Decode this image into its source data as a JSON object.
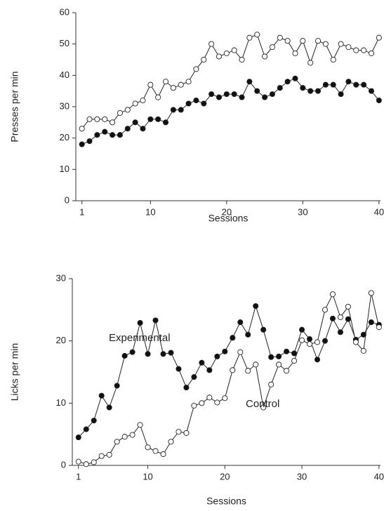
{
  "chart_data": [
    {
      "type": "line",
      "ylabel": "Presses per min",
      "xlabel": "Sessions",
      "x": [
        1,
        2,
        3,
        4,
        5,
        6,
        7,
        8,
        9,
        10,
        11,
        12,
        13,
        14,
        15,
        16,
        17,
        18,
        19,
        20,
        21,
        22,
        23,
        24,
        25,
        26,
        27,
        28,
        29,
        30,
        31,
        32,
        33,
        34,
        35,
        36,
        37,
        38,
        39,
        40
      ],
      "xlim": [
        0.2,
        40.2
      ],
      "xticks": [
        1,
        10,
        20,
        30,
        40
      ],
      "ylim": [
        0,
        60
      ],
      "yticks": [
        0,
        10,
        20,
        30,
        40,
        50,
        60
      ],
      "series": [
        {
          "color": "#222",
          "marker_fill": "#fff",
          "values": [
            23,
            26,
            26,
            26,
            25,
            28,
            29,
            31,
            32,
            37,
            33,
            38,
            36,
            37,
            38,
            42,
            45,
            50,
            46,
            47,
            48,
            45,
            52,
            53,
            46,
            49,
            52,
            51,
            47,
            51,
            44,
            51,
            50,
            45,
            50,
            49,
            48,
            48,
            47,
            52
          ]
        },
        {
          "color": "#222",
          "marker_fill": "#111",
          "values": [
            18,
            19,
            21,
            22,
            21,
            21,
            23,
            25,
            23,
            26,
            26,
            25,
            29,
            29,
            31,
            32,
            31,
            34,
            33,
            34,
            34,
            33,
            38,
            35,
            33,
            34,
            36,
            38,
            39,
            36,
            35,
            35,
            37,
            37,
            34,
            38,
            37,
            37,
            35,
            32
          ]
        }
      ]
    },
    {
      "type": "line",
      "ylabel": "Licks per min",
      "xlabel": "Sessions",
      "x": [
        1,
        2,
        3,
        4,
        5,
        6,
        7,
        8,
        9,
        10,
        11,
        12,
        13,
        14,
        15,
        16,
        17,
        18,
        19,
        20,
        21,
        22,
        23,
        24,
        25,
        26,
        27,
        28,
        29,
        30,
        31,
        32,
        33,
        34,
        35,
        36,
        37,
        38,
        39,
        40
      ],
      "xlim": [
        0.2,
        40.2
      ],
      "xticks": [
        1,
        10,
        20,
        30,
        40
      ],
      "ylim": [
        0,
        30
      ],
      "yticks": [
        0,
        10,
        20,
        30
      ],
      "series": [
        {
          "name": "Experimental",
          "color": "#222",
          "marker_fill": "#111",
          "values": [
            4.5,
            5.8,
            7.2,
            11.2,
            9.3,
            12.8,
            17.6,
            18.2,
            22.9,
            17.9,
            23.3,
            17.9,
            18.1,
            15.5,
            12.5,
            14.2,
            16.5,
            15.3,
            17.5,
            18.3,
            20.5,
            23,
            21,
            25.6,
            21.8,
            17.4,
            17.5,
            18.3,
            18,
            21.8,
            20.3,
            17,
            20,
            23.6,
            21.4,
            23.5,
            20.2,
            21,
            23,
            22.6
          ]
        },
        {
          "name": "Control",
          "color": "#222",
          "marker_fill": "#fff",
          "values": [
            0.6,
            0.2,
            0.5,
            1.5,
            1.7,
            3.8,
            4.6,
            4.9,
            6.5,
            2.9,
            2.3,
            1.8,
            3.8,
            5.4,
            5.2,
            9.6,
            10,
            10.9,
            10.1,
            10.8,
            15.3,
            18.2,
            15.2,
            16.2,
            9.3,
            13,
            16.2,
            15.2,
            16.8,
            20.1,
            19.5,
            19.8,
            25,
            27.5,
            23.8,
            25.5,
            19.8,
            18.4,
            27.7,
            22.2
          ]
        }
      ]
    }
  ]
}
